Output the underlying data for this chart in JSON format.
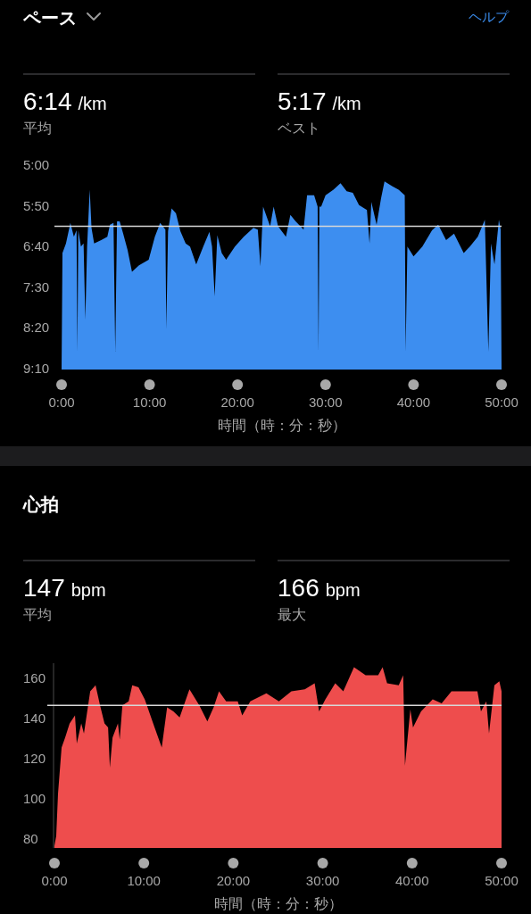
{
  "chart_data": [
    {
      "type": "area",
      "title": "ペース",
      "xlabel": "時間（時：分：秒）",
      "annotations": [
        "6:14",
        "/km",
        "平均",
        "5:17",
        "/km",
        "ベスト",
        "ヘルプ"
      ],
      "color": "#3d8ef0",
      "x": [
        0,
        0.1,
        0.5,
        1.0,
        1.4,
        1.7,
        1.8,
        1.9,
        2.2,
        2.5,
        2.7,
        2.9,
        3.2,
        3.4,
        3.7,
        4.5,
        5.2,
        5.5,
        5.9,
        6.1,
        6.3,
        6.6,
        7.0,
        7.5,
        8.0,
        8.8,
        9.9,
        10.6,
        11.2,
        11.8,
        11.9,
        12.1,
        12.5,
        13.0,
        13.5,
        14.1,
        14.6,
        15.3,
        16.1,
        16.8,
        17.1,
        17.4,
        17.7,
        18.2,
        18.7,
        19.7,
        20.7,
        21.8,
        22.3,
        22.6,
        22.9,
        23.7,
        24.1,
        24.6,
        25.5,
        26.0,
        26.6,
        27.5,
        27.9,
        28.7,
        29.1,
        29.2,
        29.3,
        29.5,
        30.0,
        30.9,
        31.7,
        32.4,
        33.1,
        33.8,
        34.7,
        35.0,
        35.2,
        35.8,
        36.3,
        36.7,
        37.6,
        38.3,
        39.0,
        39.1,
        39.3,
        40.0,
        41.0,
        42.1,
        42.8,
        43.7,
        44.6,
        45.7,
        46.4,
        47.3,
        48.1,
        48.5,
        48.8,
        49.2,
        49.7,
        49.9,
        50.0
      ],
      "values": [
        550,
        407,
        395,
        370,
        387,
        379,
        528,
        379,
        399,
        395,
        489,
        399,
        329,
        376,
        395,
        391,
        387,
        372,
        370,
        528,
        368,
        368,
        383,
        403,
        430,
        422,
        415,
        387,
        370,
        378,
        501,
        380,
        352,
        358,
        380,
        395,
        399,
        421,
        399,
        381,
        399,
        460,
        385,
        407,
        415,
        399,
        387,
        376,
        378,
        423,
        350,
        374,
        350,
        374,
        387,
        360,
        368,
        378,
        336,
        336,
        350,
        528,
        350,
        350,
        336,
        329,
        321,
        331,
        333,
        348,
        354,
        395,
        344,
        372,
        340,
        319,
        325,
        329,
        336,
        528,
        399,
        411,
        399,
        379,
        372,
        391,
        383,
        407,
        399,
        387,
        366,
        528,
        395,
        421,
        366,
        378,
        550
      ],
      "xlim": [
        0,
        50
      ],
      "xticks": [
        {
          "value": 0,
          "label": "0:00"
        },
        {
          "value": 10,
          "label": "10:00"
        },
        {
          "value": 20,
          "label": "20:00"
        },
        {
          "value": 30,
          "label": "30:00"
        },
        {
          "value": 40,
          "label": "40:00"
        },
        {
          "value": 50,
          "label": "50:00"
        }
      ],
      "ylim": [
        550,
        300
      ],
      "yticks": [
        {
          "value": 300,
          "label": "5:00"
        },
        {
          "value": 350,
          "label": "5:50"
        },
        {
          "value": 400,
          "label": "6:40"
        },
        {
          "value": 450,
          "label": "7:30"
        },
        {
          "value": 500,
          "label": "8:20"
        },
        {
          "value": 550,
          "label": "9:10"
        }
      ],
      "ref_lines": [
        {
          "axis": "y",
          "value": 374,
          "color": "#d8d8d8"
        }
      ]
    },
    {
      "type": "area",
      "title": "心拍",
      "xlabel": "時間（時：分：秒）",
      "annotations": [
        "147",
        "bpm",
        "平均",
        "166",
        "bpm",
        "最大"
      ],
      "color": "#ee4d4d",
      "x": [
        0,
        0.2,
        0.4,
        0.8,
        1.2,
        1.7,
        2.3,
        2.5,
        3.0,
        3.3,
        4.0,
        4.6,
        5.1,
        5.6,
        6.0,
        6.2,
        6.5,
        7.1,
        7.3,
        7.6,
        8.3,
        8.7,
        9.4,
        10.1,
        11.2,
        12.0,
        12.6,
        13.3,
        14.0,
        15.1,
        16.2,
        17.1,
        17.8,
        18.4,
        19.2,
        20.5,
        21.0,
        21.9,
        23.7,
        25.1,
        26.5,
        28.0,
        29.1,
        29.6,
        30.3,
        31.4,
        32.3,
        33.5,
        34.8,
        36.2,
        36.7,
        37.2,
        38.5,
        39.0,
        39.2,
        39.8,
        40.1,
        41.0,
        42.3,
        43.3,
        44.4,
        45.8,
        47.3,
        47.7,
        48.3,
        48.6,
        49.2,
        49.75,
        50.0
      ],
      "values": [
        77,
        82,
        103,
        126,
        131,
        138,
        142,
        128,
        138,
        133,
        154,
        157,
        147,
        138,
        136,
        116,
        131,
        138,
        130,
        147,
        149,
        157,
        156,
        150,
        136,
        126,
        146,
        144,
        141,
        155,
        147,
        139,
        146,
        154,
        149,
        149,
        142,
        149,
        153,
        149,
        154,
        155,
        158,
        144,
        150,
        158,
        154,
        166,
        162,
        162,
        166,
        158,
        157,
        162,
        117,
        145,
        136,
        144,
        150,
        148,
        154,
        154,
        154,
        144,
        149,
        133,
        157,
        159,
        154
      ],
      "xlim": [
        0,
        50
      ],
      "xticks": [
        {
          "value": 0,
          "label": "0:00"
        },
        {
          "value": 10,
          "label": "10:00"
        },
        {
          "value": 20,
          "label": "20:00"
        },
        {
          "value": 30,
          "label": "30:00"
        },
        {
          "value": 40,
          "label": "40:00"
        },
        {
          "value": 50,
          "label": "50:00"
        }
      ],
      "ylim": [
        76,
        168
      ],
      "yticks": [
        80,
        100,
        120,
        140,
        160
      ],
      "ref_lines": [
        {
          "axis": "y",
          "value": 147,
          "color": "#d8d8d8"
        }
      ]
    }
  ]
}
